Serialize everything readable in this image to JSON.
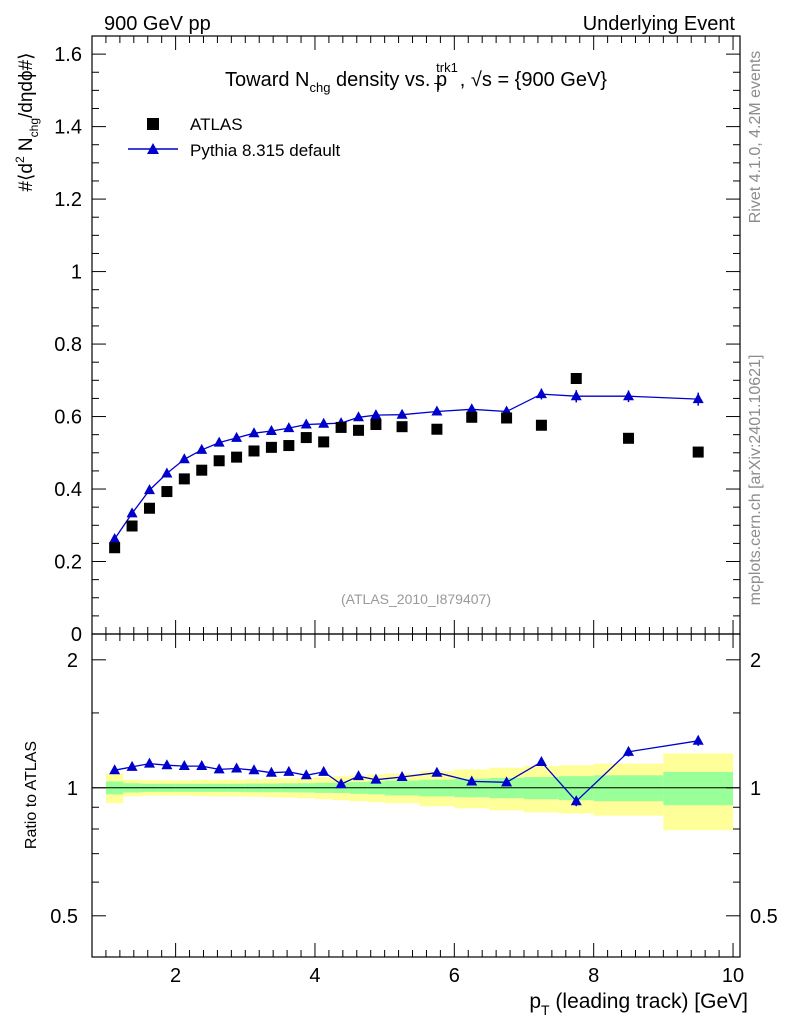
{
  "header": {
    "left": "900 GeV pp",
    "right": "Underlying Event"
  },
  "side_text": {
    "rivet": "Rivet 4.1.0,  4.2M events",
    "mcplots": "mcplots.cern.ch [arXiv:2401.10621]"
  },
  "colors": {
    "mc": "#0000cc",
    "data": "#000000",
    "band_inner": "#99ff99",
    "band_outer": "#ffff99"
  },
  "chart_data": [
    {
      "type": "scatter",
      "title": "Toward N_chg density vs. p_T^trk1, √s = {900 GeV}",
      "title_parts": {
        "a": "Toward N",
        "a_sub": "chg",
        "b": " density vs. p",
        "b_sub": "T",
        "b_sup": "trk1",
        "c": ", √s = {900 GeV}"
      },
      "ylabel": "#⟨d² N_chg/dηdϕ#⟩",
      "ylabel_parts": {
        "a": "#⟨d",
        "a_sup": "2",
        "b": " N",
        "b_sub": "chg",
        "c": "/dηdϕ#⟩"
      },
      "watermark": "(ATLAS_2010_I879407)",
      "xlim": [
        0.8,
        10.1
      ],
      "ylim": [
        0,
        1.65
      ],
      "yticks": [
        0,
        0.2,
        0.4,
        0.6,
        0.8,
        1,
        1.2,
        1.4,
        1.6
      ],
      "ytick_labels": [
        "0",
        "0.2",
        "0.4",
        "0.6",
        "0.8",
        "1",
        "1.2",
        "1.4",
        "1.6"
      ],
      "legend": [
        "ATLAS",
        "Pythia 8.315 default"
      ],
      "series": [
        {
          "name": "ATLAS",
          "marker": "square",
          "x": [
            1.125,
            1.375,
            1.625,
            1.875,
            2.125,
            2.375,
            2.625,
            2.875,
            3.125,
            3.375,
            3.625,
            3.875,
            4.125,
            4.375,
            4.625,
            4.875,
            5.25,
            5.75,
            6.25,
            6.75,
            7.25,
            7.75,
            8.5,
            9.5
          ],
          "y": [
            0.238,
            0.298,
            0.347,
            0.393,
            0.428,
            0.452,
            0.478,
            0.488,
            0.505,
            0.515,
            0.52,
            0.542,
            0.53,
            0.57,
            0.562,
            0.578,
            0.572,
            0.565,
            0.598,
            0.596,
            0.576,
            0.705,
            0.54,
            0.502
          ]
        },
        {
          "name": "Pythia 8.315 default",
          "marker": "triangle",
          "x": [
            1.125,
            1.375,
            1.625,
            1.875,
            2.125,
            2.375,
            2.625,
            2.875,
            3.125,
            3.375,
            3.625,
            3.875,
            4.125,
            4.375,
            4.625,
            4.875,
            5.25,
            5.75,
            6.25,
            6.75,
            7.25,
            7.75,
            8.5,
            9.5
          ],
          "y": [
            0.262,
            0.333,
            0.397,
            0.443,
            0.482,
            0.508,
            0.528,
            0.541,
            0.554,
            0.56,
            0.568,
            0.578,
            0.58,
            0.582,
            0.598,
            0.604,
            0.605,
            0.614,
            0.62,
            0.614,
            0.662,
            0.656,
            0.656,
            0.648
          ],
          "yerr": [
            0.004,
            0.004,
            0.004,
            0.004,
            0.004,
            0.004,
            0.004,
            0.005,
            0.005,
            0.005,
            0.005,
            0.006,
            0.006,
            0.006,
            0.007,
            0.008,
            0.008,
            0.009,
            0.01,
            0.012,
            0.015,
            0.017,
            0.016,
            0.018
          ]
        }
      ]
    },
    {
      "type": "line",
      "ylabel": "Ratio to ATLAS",
      "xlabel": "p_T (leading track) [GeV]",
      "xlabel_parts": {
        "a": "p",
        "a_sub": "T",
        "b": " (leading track) [GeV]"
      },
      "xlim": [
        0.8,
        10.1
      ],
      "ylim": [
        0.4,
        2.3
      ],
      "ylog": true,
      "xticks": [
        2,
        4,
        6,
        8,
        10
      ],
      "xtick_labels": [
        "2",
        "4",
        "6",
        "8",
        "10"
      ],
      "yticks": [
        0.5,
        1,
        2
      ],
      "ytick_labels": [
        "0.5",
        "1",
        "2"
      ],
      "series": [
        {
          "name": "Pythia 8.315 default / ATLAS",
          "x": [
            1.125,
            1.375,
            1.625,
            1.875,
            2.125,
            2.375,
            2.625,
            2.875,
            3.125,
            3.375,
            3.625,
            3.875,
            4.125,
            4.375,
            4.625,
            4.875,
            5.25,
            5.75,
            6.25,
            6.75,
            7.25,
            7.75,
            8.5,
            9.5
          ],
          "y": [
            1.1,
            1.12,
            1.14,
            1.13,
            1.125,
            1.125,
            1.105,
            1.11,
            1.1,
            1.085,
            1.09,
            1.07,
            1.09,
            1.02,
            1.065,
            1.045,
            1.06,
            1.085,
            1.035,
            1.03,
            1.15,
            0.93,
            1.215,
            1.29
          ],
          "yerr": [
            0.015,
            0.013,
            0.012,
            0.011,
            0.01,
            0.01,
            0.01,
            0.01,
            0.01,
            0.01,
            0.01,
            0.011,
            0.011,
            0.012,
            0.013,
            0.014,
            0.014,
            0.016,
            0.017,
            0.02,
            0.025,
            0.025,
            0.03,
            0.035
          ]
        }
      ],
      "bands": {
        "edges": [
          1.0,
          1.25,
          1.5,
          1.75,
          2.0,
          2.25,
          2.5,
          2.75,
          3.0,
          3.25,
          3.5,
          3.75,
          4.0,
          4.25,
          4.5,
          4.75,
          5.0,
          5.5,
          6.0,
          6.5,
          7.0,
          7.5,
          8.0,
          9.0,
          10.0
        ],
        "inner_lo": [
          0.965,
          0.975,
          0.978,
          0.978,
          0.978,
          0.978,
          0.978,
          0.978,
          0.977,
          0.977,
          0.976,
          0.975,
          0.973,
          0.972,
          0.968,
          0.965,
          0.96,
          0.955,
          0.95,
          0.945,
          0.94,
          0.935,
          0.93,
          0.91
        ],
        "inner_hi": [
          1.035,
          1.025,
          1.022,
          1.022,
          1.022,
          1.022,
          1.022,
          1.022,
          1.023,
          1.023,
          1.024,
          1.025,
          1.027,
          1.028,
          1.032,
          1.035,
          1.04,
          1.045,
          1.05,
          1.055,
          1.06,
          1.065,
          1.07,
          1.09
        ],
        "outer_lo": [
          0.92,
          0.955,
          0.958,
          0.958,
          0.958,
          0.956,
          0.955,
          0.955,
          0.953,
          0.95,
          0.948,
          0.945,
          0.94,
          0.935,
          0.93,
          0.925,
          0.92,
          0.905,
          0.895,
          0.885,
          0.875,
          0.87,
          0.86,
          0.795
        ],
        "outer_hi": [
          1.08,
          1.045,
          1.042,
          1.042,
          1.042,
          1.044,
          1.045,
          1.045,
          1.047,
          1.05,
          1.052,
          1.055,
          1.06,
          1.065,
          1.07,
          1.075,
          1.08,
          1.095,
          1.105,
          1.115,
          1.125,
          1.13,
          1.14,
          1.205
        ]
      }
    }
  ]
}
